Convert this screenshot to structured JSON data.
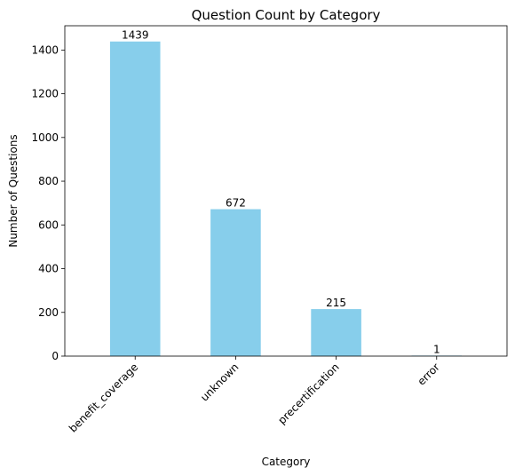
{
  "chart_data": {
    "type": "bar",
    "title": "Question Count by Category",
    "xlabel": "Category",
    "ylabel": "Number of Questions",
    "categories": [
      "benefit_coverage",
      "unknown",
      "precertification",
      "error"
    ],
    "values": [
      1439,
      672,
      215,
      1
    ],
    "ylim": [
      0,
      1511
    ],
    "yticks": [
      0,
      200,
      400,
      600,
      800,
      1000,
      1200,
      1400
    ],
    "grid": false,
    "legend": "none",
    "bar_color": "#87CEEB",
    "xtick_rotation": 45
  }
}
